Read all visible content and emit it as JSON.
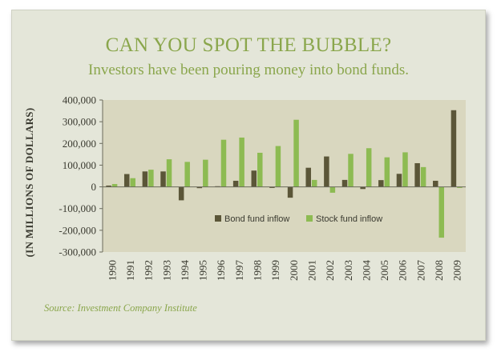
{
  "title": "CAN YOU SPOT THE BUBBLE?",
  "subtitle": "Investors have been pouring money into bond funds.",
  "source": "Source: Investment Company Institute",
  "colors": {
    "card_background": "#e4e6d9",
    "plot_background": "#d9d7bf",
    "bond_fund": "#5b5638",
    "stock_fund": "#8dbb52",
    "text_green": "#8aa64c"
  },
  "chart_data": {
    "type": "bar",
    "title": "CAN YOU SPOT THE BUBBLE?",
    "subtitle": "Investors have been pouring money into bond funds.",
    "xlabel": "",
    "ylabel": "(IN MILLIONS OF DOLLARS)",
    "ylim": [
      -300000,
      400000
    ],
    "yticks": [
      400000,
      300000,
      200000,
      100000,
      0,
      -100000,
      -200000,
      -300000
    ],
    "ytick_labels": [
      "400,000",
      "300,000",
      "200,000",
      "100,000",
      "0",
      "-100,000",
      "-200,000",
      "-300,000"
    ],
    "categories": [
      "1990",
      "1991",
      "1992",
      "1993",
      "1994",
      "1995",
      "1996",
      "1997",
      "1998",
      "1999",
      "2000",
      "2001",
      "2002",
      "2003",
      "2004",
      "2005",
      "2006",
      "2007",
      "2008",
      "2009"
    ],
    "series": [
      {
        "name": "Bond fund inflow",
        "color": "#5b5638",
        "values": [
          6000,
          59000,
          71000,
          71000,
          -62000,
          -6000,
          3000,
          28000,
          75000,
          -5000,
          -50000,
          88000,
          140000,
          32000,
          -10000,
          31000,
          60000,
          109000,
          28000,
          353000
        ]
      },
      {
        "name": "Stock fund inflow",
        "color": "#8dbb52",
        "values": [
          13000,
          40000,
          79000,
          127000,
          115000,
          125000,
          217000,
          227000,
          157000,
          188000,
          309000,
          32000,
          -27000,
          152000,
          178000,
          136000,
          159000,
          91000,
          -234000,
          -5000
        ]
      }
    ],
    "legend_position": "bottom-right",
    "grid": false
  }
}
